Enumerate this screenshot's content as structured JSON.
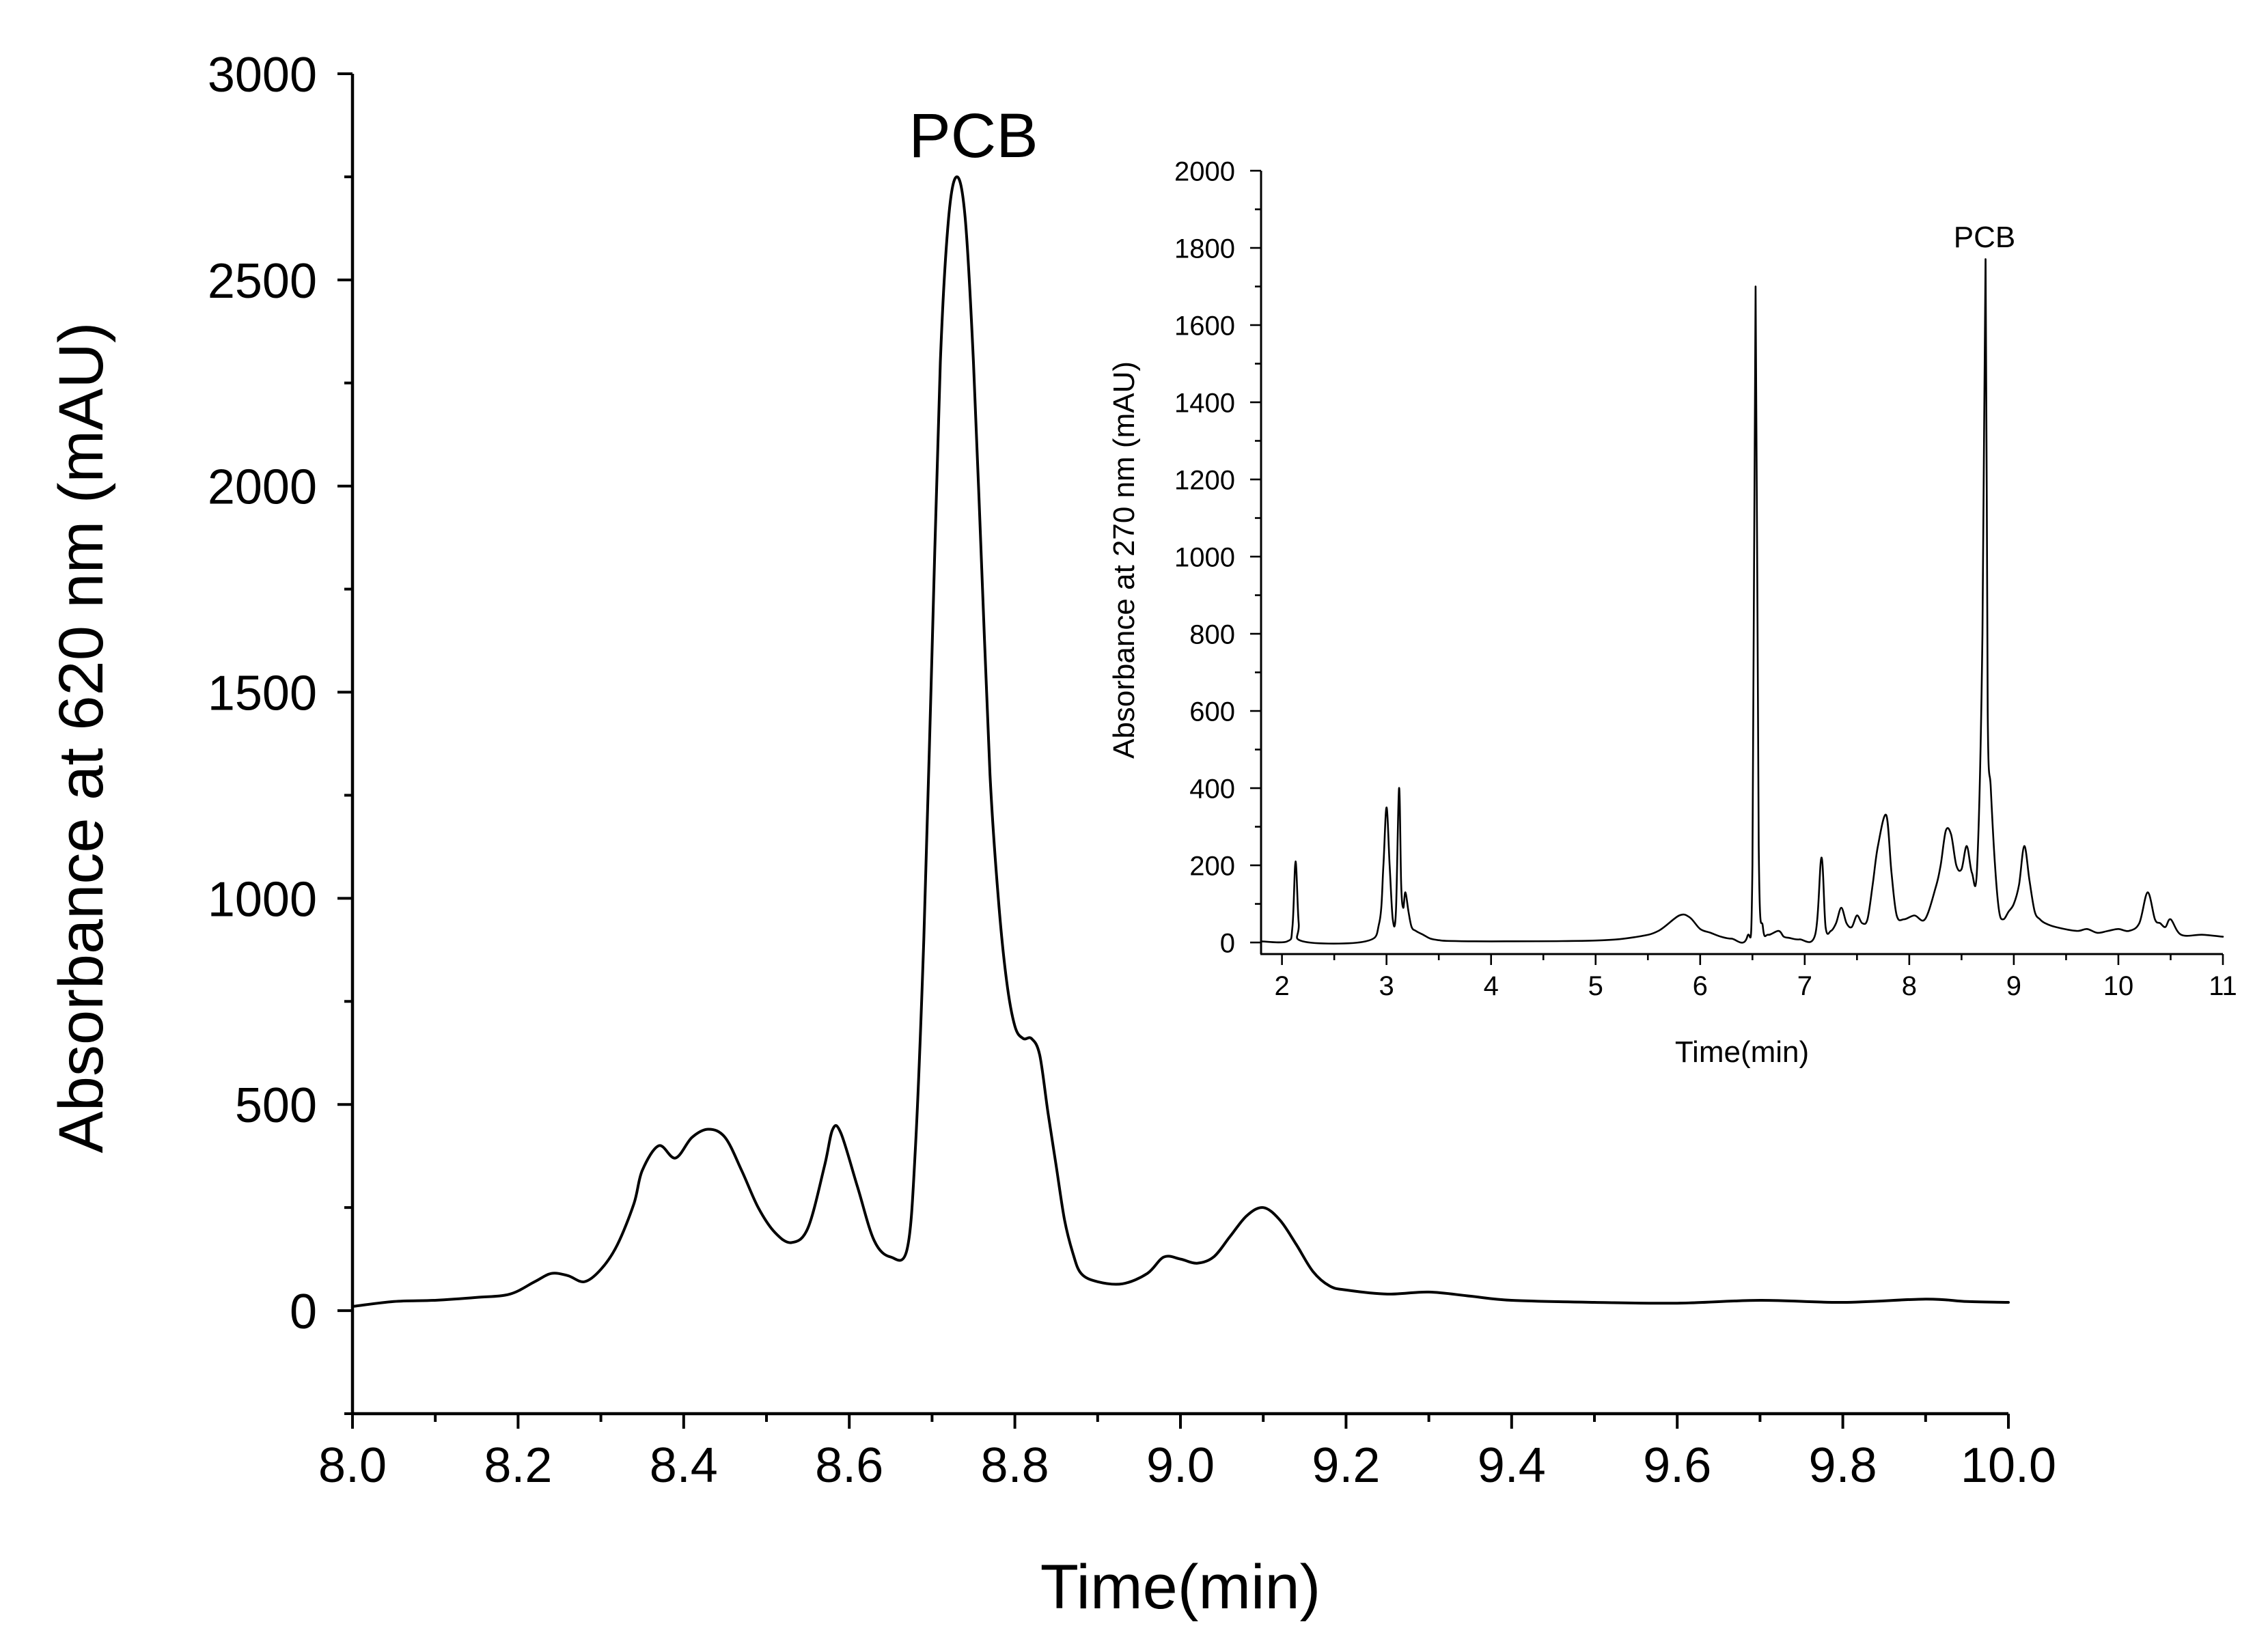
{
  "chart_data": [
    {
      "id": "main",
      "type": "line",
      "title": "",
      "xlabel": "Time(min)",
      "ylabel": "Absorbance at 620 nm (mAU)",
      "xlim": [
        8.0,
        10.0
      ],
      "ylim": [
        -250,
        3000
      ],
      "xticks": [
        8.0,
        8.2,
        8.4,
        8.6,
        8.8,
        9.0,
        9.2,
        9.4,
        9.6,
        9.8,
        10.0
      ],
      "xtick_labels": [
        "8.0",
        "8.2",
        "8.4",
        "8.6",
        "8.8",
        "9.0",
        "9.2",
        "9.4",
        "9.6",
        "9.8",
        "10.0"
      ],
      "yticks": [
        0,
        500,
        1000,
        1500,
        2000,
        2500,
        3000
      ],
      "ytick_labels": [
        "0",
        "500",
        "1000",
        "1500",
        "2000",
        "2500",
        "3000"
      ],
      "annotations": [
        {
          "text": "PCB",
          "x": 8.725,
          "y": 2750
        }
      ],
      "series": [
        {
          "name": "Absorbance at 620 nm",
          "x": [
            8.0,
            8.05,
            8.1,
            8.15,
            8.19,
            8.22,
            8.24,
            8.26,
            8.28,
            8.3,
            8.32,
            8.34,
            8.35,
            8.37,
            8.39,
            8.41,
            8.43,
            8.45,
            8.47,
            8.49,
            8.51,
            8.53,
            8.55,
            8.57,
            8.58,
            8.59,
            8.61,
            8.63,
            8.65,
            8.67,
            8.68,
            8.69,
            8.7,
            8.71,
            8.72,
            8.73,
            8.74,
            8.75,
            8.76,
            8.77,
            8.78,
            8.79,
            8.8,
            8.81,
            8.82,
            8.83,
            8.84,
            8.85,
            8.86,
            8.87,
            8.88,
            8.9,
            8.93,
            8.96,
            8.98,
            9.0,
            9.02,
            9.04,
            9.06,
            9.08,
            9.1,
            9.12,
            9.14,
            9.16,
            9.18,
            9.2,
            9.25,
            9.3,
            9.35,
            9.4,
            9.5,
            9.6,
            9.7,
            9.8,
            9.9,
            9.95,
            10.0
          ],
          "y": [
            10,
            22,
            25,
            32,
            40,
            70,
            90,
            85,
            70,
            100,
            160,
            260,
            340,
            400,
            370,
            420,
            440,
            420,
            340,
            250,
            190,
            165,
            200,
            350,
            440,
            430,
            300,
            170,
            130,
            150,
            400,
            900,
            1600,
            2300,
            2650,
            2750,
            2650,
            2300,
            1800,
            1300,
            1000,
            800,
            690,
            660,
            660,
            620,
            480,
            350,
            220,
            140,
            90,
            70,
            65,
            90,
            130,
            125,
            115,
            130,
            180,
            230,
            250,
            220,
            160,
            95,
            60,
            50,
            40,
            45,
            35,
            25,
            20,
            18,
            25,
            20,
            28,
            22,
            20
          ]
        }
      ]
    },
    {
      "id": "inset",
      "type": "line",
      "title": "",
      "xlabel": "Time(min)",
      "ylabel": "Absorbance at 270 nm (mAU)",
      "xlim": [
        1.8,
        11.0
      ],
      "ylim": [
        -30,
        2000
      ],
      "xticks": [
        2,
        3,
        4,
        5,
        6,
        7,
        8,
        9,
        10,
        11
      ],
      "xtick_labels": [
        "2",
        "3",
        "4",
        "5",
        "6",
        "7",
        "8",
        "9",
        "10",
        "11"
      ],
      "yticks": [
        0,
        200,
        400,
        600,
        800,
        1000,
        1200,
        1400,
        1600,
        1800,
        2000
      ],
      "ytick_labels": [
        "0",
        "200",
        "400",
        "600",
        "800",
        "1000",
        "1200",
        "1400",
        "1600",
        "1800",
        "2000"
      ],
      "annotations": [
        {
          "text": "PCB",
          "x": 8.75,
          "y": 1770
        }
      ],
      "series": [
        {
          "name": "Absorbance at 270 nm",
          "x": [
            1.8,
            2.05,
            2.1,
            2.13,
            2.16,
            2.2,
            2.8,
            2.93,
            2.97,
            3.0,
            3.03,
            3.06,
            3.09,
            3.12,
            3.14,
            3.16,
            3.18,
            3.21,
            3.24,
            3.28,
            3.35,
            3.42,
            3.5,
            3.6,
            4.0,
            5.0,
            5.4,
            5.6,
            5.8,
            5.9,
            6.0,
            6.1,
            6.2,
            6.3,
            6.45,
            6.5,
            6.53,
            6.56,
            6.6,
            6.65,
            6.75,
            6.8,
            6.85,
            6.95,
            7.1,
            7.16,
            7.2,
            7.25,
            7.3,
            7.35,
            7.4,
            7.45,
            7.5,
            7.55,
            7.6,
            7.65,
            7.7,
            7.78,
            7.83,
            7.88,
            7.95,
            8.05,
            8.15,
            8.25,
            8.3,
            8.35,
            8.4,
            8.45,
            8.5,
            8.55,
            8.6,
            8.65,
            8.7,
            8.73,
            8.75,
            8.78,
            8.82,
            8.86,
            8.9,
            8.95,
            9.0,
            9.05,
            9.1,
            9.15,
            9.2,
            9.25,
            9.3,
            9.4,
            9.6,
            9.7,
            9.8,
            9.9,
            10.0,
            10.1,
            10.2,
            10.28,
            10.35,
            10.4,
            10.45,
            10.5,
            10.6,
            10.8,
            11.0
          ],
          "y": [
            3,
            3,
            40,
            210,
            50,
            3,
            3,
            50,
            200,
            350,
            200,
            60,
            80,
            400,
            150,
            90,
            130,
            80,
            40,
            30,
            20,
            10,
            6,
            4,
            3,
            5,
            15,
            30,
            70,
            65,
            35,
            25,
            15,
            10,
            15,
            200,
            1700,
            250,
            40,
            20,
            30,
            15,
            12,
            8,
            20,
            220,
            40,
            30,
            50,
            90,
            50,
            40,
            70,
            50,
            60,
            150,
            250,
            330,
            180,
            70,
            60,
            70,
            60,
            140,
            200,
            290,
            280,
            200,
            190,
            250,
            180,
            200,
            800,
            1770,
            600,
            400,
            200,
            80,
            60,
            80,
            100,
            150,
            250,
            160,
            80,
            60,
            50,
            40,
            30,
            35,
            25,
            30,
            35,
            30,
            50,
            130,
            60,
            50,
            40,
            60,
            20,
            20,
            15
          ]
        }
      ]
    }
  ]
}
